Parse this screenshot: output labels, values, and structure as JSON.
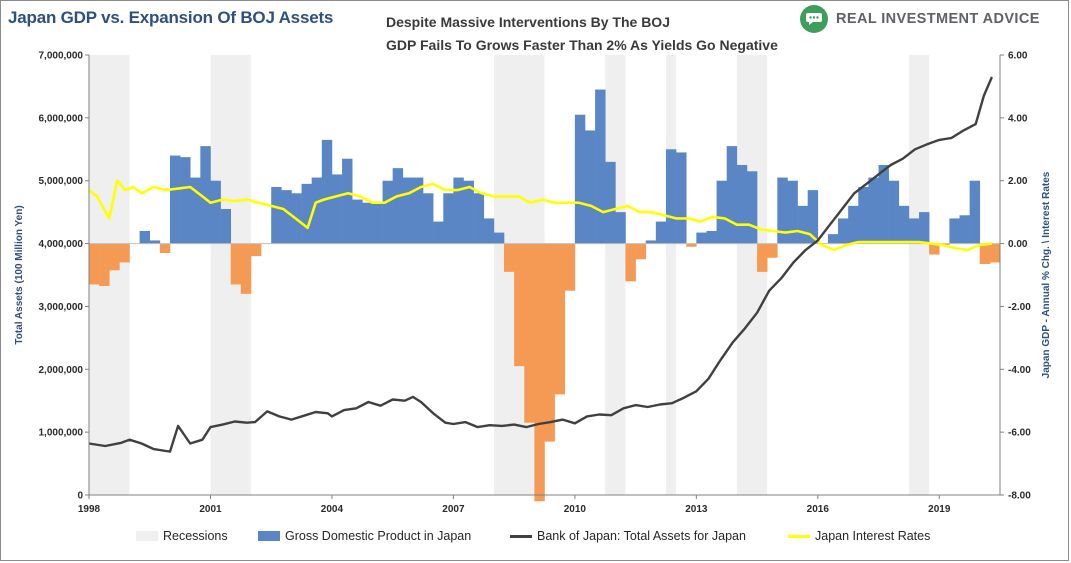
{
  "header": {
    "title": "Japan GDP vs. Expansion Of BOJ Assets",
    "subtitle_line1": "Despite Massive Interventions By The BOJ",
    "subtitle_line2": "GDP Fails To Grows Faster Than 2% As Yields Go Negative",
    "brand": "REAL INVESTMENT ADVICE",
    "brand_icon": "chat-bubble-icon"
  },
  "chart_data": {
    "type": "bar",
    "xlim": [
      1998,
      2020.5
    ],
    "x_ticks": [
      "1998",
      "2001",
      "2004",
      "2007",
      "2010",
      "2013",
      "2016",
      "2019"
    ],
    "y_left": {
      "label": "Total Assets (100 Million Yen)",
      "range": [
        0,
        7000000
      ],
      "ticks": [
        "0",
        "1,000,000",
        "2,000,000",
        "3,000,000",
        "4,000,000",
        "5,000,000",
        "6,000,000",
        "7,000,000"
      ]
    },
    "y_right": {
      "label": "Japan GDP - Annual % Chg. \\ Interest Rates",
      "range": [
        -8,
        6
      ],
      "ticks": [
        "-8.00",
        "-6.00",
        "-4.00",
        "-2.00",
        "0.00",
        "2.00",
        "4.00",
        "6.00"
      ]
    },
    "legend_position": "bottom",
    "grid": false,
    "colors": {
      "recession": "#efefef",
      "gdp_positive": "#5b86c5",
      "gdp_negative": "#f59a55",
      "boj_assets": "#404040",
      "interest_rates": "#ffff00"
    },
    "recessions": [
      [
        1998.0,
        1999.0
      ],
      [
        2001.0,
        2002.0
      ],
      [
        2008.0,
        2009.25
      ],
      [
        2010.75,
        2011.25
      ],
      [
        2012.25,
        2012.5
      ],
      [
        2014.0,
        2014.75
      ],
      [
        2018.25,
        2018.75
      ]
    ],
    "gdp_series": {
      "name": "Gross Domestic Product in Japan",
      "quarters": [
        1998.0,
        1998.25,
        1998.5,
        1998.75,
        1999.0,
        1999.25,
        1999.5,
        1999.75,
        2000.0,
        2000.25,
        2000.5,
        2000.75,
        2001.0,
        2001.25,
        2001.5,
        2001.75,
        2002.0,
        2002.25,
        2002.5,
        2002.75,
        2003.0,
        2003.25,
        2003.5,
        2003.75,
        2004.0,
        2004.25,
        2004.5,
        2004.75,
        2005.0,
        2005.25,
        2005.5,
        2005.75,
        2006.0,
        2006.25,
        2006.5,
        2006.75,
        2007.0,
        2007.25,
        2007.5,
        2007.75,
        2008.0,
        2008.25,
        2008.5,
        2008.75,
        2009.0,
        2009.25,
        2009.5,
        2009.75,
        2010.0,
        2010.25,
        2010.5,
        2010.75,
        2011.0,
        2011.25,
        2011.5,
        2011.75,
        2012.0,
        2012.25,
        2012.5,
        2012.75,
        2013.0,
        2013.25,
        2013.5,
        2013.75,
        2014.0,
        2014.25,
        2014.5,
        2014.75,
        2015.0,
        2015.25,
        2015.5,
        2015.75,
        2016.0,
        2016.25,
        2016.5,
        2016.75,
        2017.0,
        2017.25,
        2017.5,
        2017.75,
        2018.0,
        2018.25,
        2018.5,
        2018.75,
        2019.0,
        2019.25,
        2019.5,
        2019.75,
        2020.0,
        2020.25
      ],
      "values": [
        -1.3,
        -1.35,
        -0.85,
        -0.6,
        0.0,
        0.4,
        0.1,
        -0.3,
        2.8,
        2.75,
        2.1,
        3.1,
        2.0,
        1.1,
        -1.3,
        -1.6,
        -0.4,
        0.0,
        1.8,
        1.7,
        1.6,
        1.9,
        2.1,
        3.3,
        2.2,
        2.7,
        1.4,
        1.3,
        1.3,
        2.0,
        2.4,
        2.1,
        2.1,
        1.6,
        0.7,
        1.6,
        2.1,
        2.0,
        1.6,
        0.8,
        0.35,
        -0.9,
        -3.9,
        -5.7,
        -8.2,
        -6.3,
        -4.8,
        -1.5,
        4.1,
        3.6,
        4.9,
        2.6,
        1.0,
        -1.2,
        -0.5,
        0.1,
        0.7,
        3.0,
        2.9,
        -0.1,
        0.35,
        0.4,
        2.0,
        3.1,
        2.5,
        2.3,
        -0.9,
        -0.45,
        2.1,
        2.0,
        1.2,
        1.7,
        0.0,
        0.3,
        0.8,
        1.2,
        1.8,
        2.1,
        2.5,
        2.0,
        1.2,
        0.8,
        1.0,
        -0.35,
        -0.05,
        0.8,
        0.9,
        2.0,
        -0.65,
        -0.6
      ]
    },
    "boj_series": {
      "name": "Bank of Japan: Total Assets for Japan",
      "x": [
        1998.0,
        1998.4,
        1998.8,
        1999.0,
        1999.3,
        1999.6,
        1999.9,
        2000.0,
        2000.2,
        2000.5,
        2000.8,
        2001.0,
        2001.3,
        2001.6,
        2001.9,
        2002.1,
        2002.4,
        2002.7,
        2003.0,
        2003.3,
        2003.6,
        2003.9,
        2004.0,
        2004.3,
        2004.6,
        2004.9,
        2005.2,
        2005.5,
        2005.8,
        2006.0,
        2006.2,
        2006.5,
        2006.8,
        2007.0,
        2007.3,
        2007.6,
        2007.9,
        2008.2,
        2008.5,
        2008.8,
        2009.1,
        2009.4,
        2009.7,
        2010.0,
        2010.3,
        2010.6,
        2010.9,
        2011.2,
        2011.5,
        2011.8,
        2012.1,
        2012.4,
        2012.7,
        2013.0,
        2013.3,
        2013.6,
        2013.9,
        2014.2,
        2014.5,
        2014.8,
        2015.1,
        2015.4,
        2015.7,
        2016.0,
        2016.3,
        2016.6,
        2016.9,
        2017.2,
        2017.5,
        2017.8,
        2018.1,
        2018.4,
        2018.7,
        2019.0,
        2019.3,
        2019.6,
        2019.9,
        2020.1,
        2020.3
      ],
      "values": [
        820000,
        780000,
        830000,
        880000,
        820000,
        730000,
        700000,
        690000,
        1100000,
        820000,
        880000,
        1080000,
        1120000,
        1170000,
        1150000,
        1160000,
        1330000,
        1250000,
        1200000,
        1260000,
        1320000,
        1300000,
        1250000,
        1350000,
        1380000,
        1480000,
        1420000,
        1520000,
        1500000,
        1560000,
        1480000,
        1300000,
        1150000,
        1130000,
        1160000,
        1080000,
        1110000,
        1100000,
        1120000,
        1080000,
        1130000,
        1160000,
        1200000,
        1140000,
        1250000,
        1280000,
        1270000,
        1380000,
        1430000,
        1400000,
        1440000,
        1460000,
        1550000,
        1650000,
        1850000,
        2150000,
        2430000,
        2650000,
        2900000,
        3250000,
        3450000,
        3700000,
        3900000,
        4050000,
        4300000,
        4550000,
        4800000,
        4950000,
        5100000,
        5250000,
        5350000,
        5500000,
        5580000,
        5650000,
        5680000,
        5800000,
        5900000,
        6350000,
        6650000
      ]
    },
    "rates_series": {
      "name": "Japan Interest Rates",
      "x": [
        1998.0,
        1998.2,
        1998.5,
        1998.7,
        1998.9,
        1999.1,
        1999.3,
        1999.6,
        1999.9,
        2000.2,
        2000.5,
        2000.8,
        2001.0,
        2001.3,
        2001.6,
        2001.9,
        2002.2,
        2002.5,
        2002.8,
        2003.1,
        2003.4,
        2003.6,
        2003.8,
        2004.1,
        2004.4,
        2004.7,
        2005.0,
        2005.3,
        2005.6,
        2005.9,
        2006.2,
        2006.5,
        2006.8,
        2007.1,
        2007.4,
        2007.7,
        2008.0,
        2008.3,
        2008.6,
        2008.9,
        2009.2,
        2009.5,
        2009.8,
        2010.1,
        2010.4,
        2010.7,
        2011.0,
        2011.3,
        2011.6,
        2011.9,
        2012.2,
        2012.5,
        2012.8,
        2013.1,
        2013.4,
        2013.7,
        2014.0,
        2014.3,
        2014.6,
        2014.9,
        2015.2,
        2015.5,
        2015.8,
        2016.1,
        2016.4,
        2016.7,
        2017.0,
        2017.3,
        2017.6,
        2017.9,
        2018.2,
        2018.5,
        2018.8,
        2019.1,
        2019.4,
        2019.7,
        2020.0,
        2020.3
      ],
      "values": [
        1.7,
        1.5,
        0.8,
        2.0,
        1.7,
        1.8,
        1.6,
        1.8,
        1.7,
        1.75,
        1.8,
        1.5,
        1.3,
        1.4,
        1.35,
        1.4,
        1.3,
        1.2,
        1.1,
        0.8,
        0.5,
        1.3,
        1.4,
        1.5,
        1.6,
        1.5,
        1.3,
        1.3,
        1.5,
        1.6,
        1.8,
        1.9,
        1.7,
        1.7,
        1.8,
        1.6,
        1.5,
        1.5,
        1.5,
        1.3,
        1.4,
        1.3,
        1.3,
        1.3,
        1.2,
        1.0,
        1.1,
        1.2,
        1.0,
        1.0,
        0.9,
        0.8,
        0.8,
        0.7,
        0.85,
        0.8,
        0.6,
        0.6,
        0.45,
        0.4,
        0.35,
        0.4,
        0.3,
        -0.05,
        -0.2,
        -0.05,
        0.05,
        0.05,
        0.05,
        0.05,
        0.05,
        0.05,
        0.0,
        -0.05,
        -0.15,
        -0.2,
        -0.05,
        0.0
      ]
    }
  }
}
